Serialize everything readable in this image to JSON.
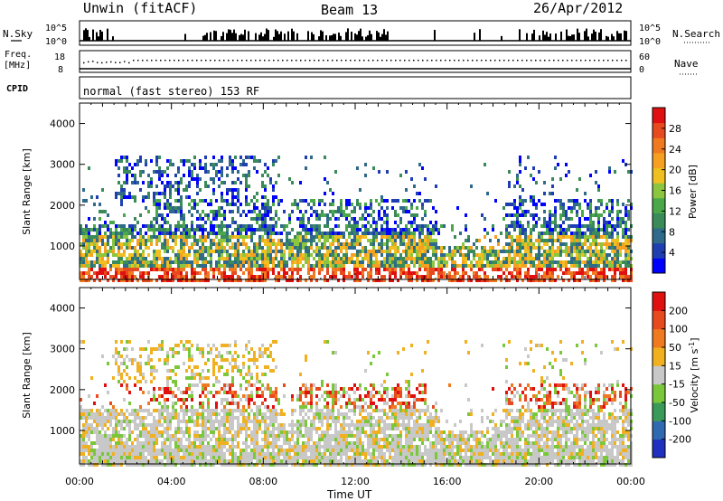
{
  "header": {
    "title_left": "Unwin (fitACF)",
    "title_center": "Beam 13",
    "title_right": "26/Apr/2012"
  },
  "status_panels": {
    "nsky_label": "N.Sky",
    "nsearch_label": "N.Search",
    "nsky_ticks": [
      "10^5",
      "10^0"
    ],
    "nsearch_ticks": [
      "10^5",
      "10^0"
    ],
    "freq_label_1": "Freq.",
    "freq_label_2": "[MHz]",
    "freq_ticks": [
      "18",
      "8"
    ],
    "nave_label": "Nave",
    "nave_ticks": [
      "60",
      "0"
    ],
    "cpid_label": "CPID",
    "cpid_text": "normal (fast stereo) 153 RF"
  },
  "chart_data": [
    {
      "type": "heatmap",
      "title": "",
      "ylabel": "Slant Range [km]",
      "xlabel": "",
      "ylim": [
        180,
        4500
      ],
      "yticks": [
        "1000",
        "2000",
        "3000",
        "4000"
      ],
      "xticks": [
        "00:00",
        "04:00",
        "08:00",
        "12:00",
        "16:00",
        "20:00",
        "00:00"
      ],
      "colorbar": {
        "label": "Power [dB]",
        "ticks": [
          "4",
          "8",
          "12",
          "16",
          "20",
          "24",
          "28"
        ],
        "colors": [
          "#0000ff",
          "#1f3fb0",
          "#2f6a8a",
          "#3a8a5a",
          "#4aa84a",
          "#8cc63f",
          "#f0c020",
          "#f5a020",
          "#f07a1f",
          "#e84a1f",
          "#e01010"
        ]
      }
    },
    {
      "type": "heatmap",
      "title": "",
      "ylabel": "Slant Range [km]",
      "xlabel": "Time UT",
      "ylim": [
        180,
        4500
      ],
      "yticks": [
        "1000",
        "2000",
        "3000",
        "4000"
      ],
      "xticks": [
        "00:00",
        "04:00",
        "08:00",
        "12:00",
        "16:00",
        "20:00",
        "00:00"
      ],
      "colorbar": {
        "label": "Velocity [m s^-1]",
        "ticks": [
          "200",
          "100",
          "50",
          "15",
          "-15",
          "-50",
          "-100",
          "-200"
        ],
        "colors": [
          "#1f2fc0",
          "#2f6ab0",
          "#3a9a5a",
          "#7ac83a",
          "#c8c8c8",
          "#f0b020",
          "#f07a1f",
          "#e84a1f",
          "#e01010"
        ]
      }
    }
  ]
}
